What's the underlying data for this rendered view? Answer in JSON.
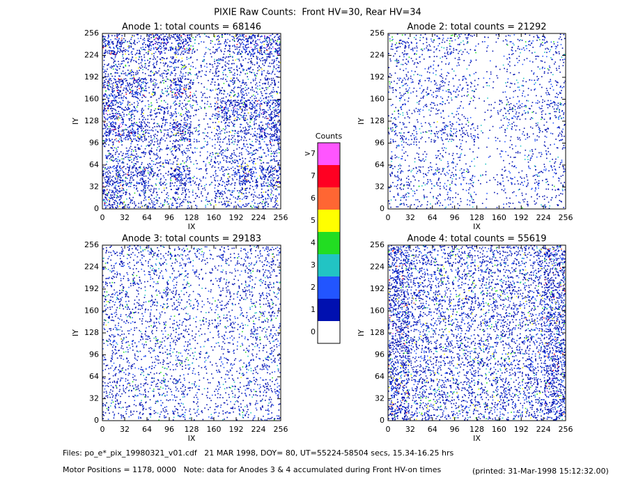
{
  "title": "PIXIE Raw Counts:  Front HV=30, Rear HV=34",
  "chart_data": [
    {
      "type": "heatmap",
      "title": "Anode 1: total counts = 68146",
      "xlabel": "IX",
      "ylabel": "IY",
      "xlim": [
        0,
        256
      ],
      "ylim": [
        0,
        256
      ],
      "xticks": [
        0,
        32,
        64,
        96,
        128,
        160,
        192,
        224,
        256
      ],
      "yticks": [
        0,
        32,
        64,
        96,
        128,
        160,
        192,
        224,
        256
      ],
      "z": [
        [
          2,
          1,
          2,
          2,
          0.5,
          1,
          2,
          2
        ],
        [
          1,
          1,
          1,
          1,
          0.5,
          1,
          1,
          1
        ],
        [
          2,
          2,
          1,
          2,
          0.5,
          1,
          1,
          1
        ],
        [
          2,
          1,
          1,
          1,
          0.5,
          2,
          2,
          2
        ],
        [
          2,
          2,
          1,
          2,
          0.5,
          1,
          1,
          2
        ],
        [
          1,
          1,
          1,
          1,
          0.5,
          1,
          1,
          1
        ],
        [
          2,
          2,
          1,
          2,
          0.5,
          1,
          2,
          2
        ],
        [
          2,
          1,
          1,
          1,
          0.5,
          1,
          1,
          1
        ]
      ]
    },
    {
      "type": "heatmap",
      "title": "Anode 2: total counts = 21292",
      "xlabel": "IX",
      "ylabel": "IY",
      "xlim": [
        0,
        256
      ],
      "ylim": [
        0,
        256
      ],
      "xticks": [
        0,
        32,
        64,
        96,
        128,
        160,
        192,
        224,
        256
      ],
      "yticks": [
        0,
        32,
        64,
        96,
        128,
        160,
        192,
        224,
        256
      ],
      "z": [
        [
          0.8,
          0.6,
          0.7,
          0.6,
          0.2,
          0.4,
          0.5,
          0.6
        ],
        [
          0.5,
          0.4,
          0.4,
          0.3,
          0.1,
          0.3,
          0.3,
          0.4
        ],
        [
          0.7,
          0.6,
          0.7,
          0.6,
          0.2,
          0.3,
          0.4,
          0.5
        ],
        [
          0.5,
          0.4,
          0.4,
          0.3,
          0.2,
          0.8,
          0.6,
          0.8
        ],
        [
          0.8,
          0.6,
          0.9,
          0.7,
          0.2,
          0.4,
          0.4,
          0.5
        ],
        [
          0.4,
          0.3,
          0.4,
          0.3,
          0.1,
          0.3,
          0.3,
          0.4
        ],
        [
          0.8,
          0.6,
          0.7,
          0.6,
          0.2,
          0.5,
          0.6,
          0.6
        ],
        [
          0.6,
          0.4,
          0.5,
          0.4,
          0.1,
          0.3,
          0.4,
          0.5
        ]
      ]
    },
    {
      "type": "heatmap",
      "title": "Anode 3: total counts = 29183",
      "xlabel": "IX",
      "ylabel": "IY",
      "xlim": [
        0,
        256
      ],
      "ylim": [
        0,
        256
      ],
      "xticks": [
        0,
        32,
        64,
        96,
        128,
        160,
        192,
        224,
        256
      ],
      "yticks": [
        0,
        32,
        64,
        96,
        128,
        160,
        192,
        224,
        256
      ],
      "z": [
        [
          0.8,
          0.7,
          0.8,
          0.8,
          0.5,
          0.6,
          0.7,
          0.9
        ],
        [
          0.7,
          0.6,
          0.7,
          0.6,
          0.4,
          0.5,
          0.6,
          0.8
        ],
        [
          0.9,
          0.7,
          0.8,
          0.7,
          0.4,
          0.6,
          0.6,
          0.7
        ],
        [
          0.7,
          0.6,
          0.6,
          0.6,
          0.4,
          0.7,
          0.6,
          0.8
        ],
        [
          0.8,
          0.6,
          0.7,
          0.7,
          0.4,
          0.5,
          0.6,
          0.7
        ],
        [
          0.7,
          0.6,
          0.6,
          0.6,
          0.4,
          0.5,
          0.6,
          0.7
        ],
        [
          0.9,
          0.8,
          0.8,
          0.7,
          0.4,
          0.6,
          0.7,
          0.8
        ],
        [
          0.7,
          0.6,
          0.6,
          0.6,
          0.4,
          0.5,
          0.6,
          0.7
        ]
      ]
    },
    {
      "type": "heatmap",
      "title": "Anode 4: total counts = 55619",
      "xlabel": "IX",
      "ylabel": "IY",
      "xlim": [
        0,
        256
      ],
      "ylim": [
        0,
        256
      ],
      "xticks": [
        0,
        32,
        64,
        96,
        128,
        160,
        192,
        224,
        256
      ],
      "yticks": [
        0,
        32,
        64,
        96,
        128,
        160,
        192,
        224,
        256
      ],
      "z": [
        [
          2,
          1.2,
          1.1,
          1.1,
          1,
          1.1,
          1.2,
          2
        ],
        [
          2,
          1.1,
          1,
          1,
          1,
          1,
          1.1,
          2
        ],
        [
          2,
          1.2,
          1.1,
          1.1,
          1,
          1.1,
          1.1,
          2
        ],
        [
          2,
          1.1,
          1,
          1,
          1,
          1,
          1.1,
          2
        ],
        [
          2,
          1.1,
          1,
          1,
          1,
          1,
          1.1,
          2
        ],
        [
          2,
          1.1,
          1,
          1,
          1,
          1,
          1.1,
          2
        ],
        [
          2,
          1.2,
          1.1,
          1.1,
          1,
          1.1,
          1.2,
          2
        ],
        [
          2,
          1.1,
          1,
          1,
          1,
          1,
          1.1,
          2
        ]
      ]
    }
  ],
  "colorbar": {
    "title": "Counts",
    "labels": [
      ">7",
      "7",
      "6",
      "5",
      "4",
      "3",
      "2",
      "1",
      "0"
    ],
    "colors": [
      "#ff55ff",
      "#ff0022",
      "#ff6633",
      "#ffff00",
      "#22dd22",
      "#22c4c4",
      "#2255ff",
      "#0010b0",
      "#ffffff"
    ]
  },
  "footer": {
    "files": "Files: po_e*_pix_19980321_v01.cdf   21 MAR 1998, DOY= 80, UT=55224-58504 secs, 15.34-16.25 hrs",
    "note": "Motor Positions = 1178, 0000   Note: data for Anodes 3 & 4 accumulated during Front HV-on times",
    "printed": "(printed: 31-Mar-1998 15:12:32.00)"
  }
}
